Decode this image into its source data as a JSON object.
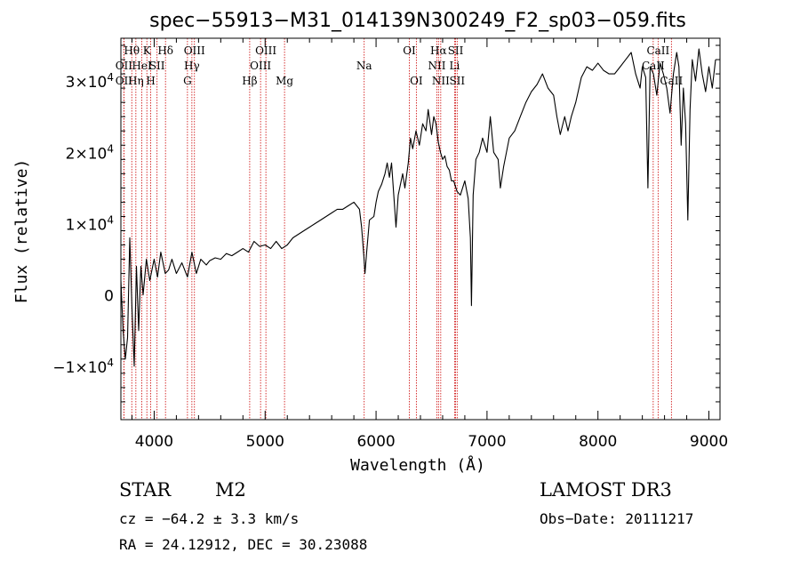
{
  "chart_data": {
    "type": "line",
    "title": "spec−55913−M31_014139N300249_F2_sp03−059.fits",
    "xlabel": "Wavelength (Å)",
    "ylabel": "Flux (relative)",
    "xlim": [
      3700,
      9100
    ],
    "ylim": [
      -17500,
      36000
    ],
    "xticks": [
      4000,
      5000,
      6000,
      7000,
      8000,
      9000
    ],
    "yticks": [
      {
        "value": -10000,
        "mantissa": "−1",
        "exp": "4"
      },
      {
        "value": 0,
        "mantissa": "0",
        "exp": ""
      },
      {
        "value": 10000,
        "mantissa": "1",
        "exp": "4"
      },
      {
        "value": 20000,
        "mantissa": "2",
        "exp": "4"
      },
      {
        "value": 30000,
        "mantissa": "3",
        "exp": "4"
      }
    ],
    "series": [
      {
        "name": "flux",
        "points": [
          [
            3700,
            2000
          ],
          [
            3720,
            -5000
          ],
          [
            3740,
            -9000
          ],
          [
            3760,
            -6000
          ],
          [
            3780,
            8000
          ],
          [
            3800,
            -2000
          ],
          [
            3820,
            -10000
          ],
          [
            3840,
            4000
          ],
          [
            3860,
            -5000
          ],
          [
            3880,
            4000
          ],
          [
            3900,
            0
          ],
          [
            3930,
            5000
          ],
          [
            3960,
            2000
          ],
          [
            4000,
            5000
          ],
          [
            4030,
            2500
          ],
          [
            4060,
            6000
          ],
          [
            4100,
            3000
          ],
          [
            4130,
            3500
          ],
          [
            4160,
            5000
          ],
          [
            4200,
            3000
          ],
          [
            4250,
            4500
          ],
          [
            4300,
            2500
          ],
          [
            4340,
            6000
          ],
          [
            4380,
            3000
          ],
          [
            4420,
            5000
          ],
          [
            4470,
            4200
          ],
          [
            4500,
            4800
          ],
          [
            4550,
            5200
          ],
          [
            4600,
            5000
          ],
          [
            4650,
            5800
          ],
          [
            4700,
            5500
          ],
          [
            4750,
            6000
          ],
          [
            4800,
            6500
          ],
          [
            4850,
            6000
          ],
          [
            4900,
            7500
          ],
          [
            4950,
            6800
          ],
          [
            5000,
            7000
          ],
          [
            5050,
            6500
          ],
          [
            5100,
            7500
          ],
          [
            5150,
            6500
          ],
          [
            5200,
            7000
          ],
          [
            5250,
            8000
          ],
          [
            5300,
            8500
          ],
          [
            5350,
            9000
          ],
          [
            5400,
            9500
          ],
          [
            5450,
            10000
          ],
          [
            5500,
            10500
          ],
          [
            5550,
            11000
          ],
          [
            5600,
            11500
          ],
          [
            5650,
            12000
          ],
          [
            5700,
            12000
          ],
          [
            5750,
            12500
          ],
          [
            5800,
            13000
          ],
          [
            5850,
            12000
          ],
          [
            5870,
            9500
          ],
          [
            5890,
            5500
          ],
          [
            5900,
            3000
          ],
          [
            5915,
            6000
          ],
          [
            5940,
            10500
          ],
          [
            5980,
            11000
          ],
          [
            6000,
            13000
          ],
          [
            6020,
            14500
          ],
          [
            6050,
            15500
          ],
          [
            6080,
            17000
          ],
          [
            6100,
            18500
          ],
          [
            6120,
            16500
          ],
          [
            6140,
            18500
          ],
          [
            6160,
            14000
          ],
          [
            6180,
            9500
          ],
          [
            6200,
            14000
          ],
          [
            6240,
            17000
          ],
          [
            6260,
            15000
          ],
          [
            6290,
            18500
          ],
          [
            6310,
            22000
          ],
          [
            6330,
            20500
          ],
          [
            6360,
            23000
          ],
          [
            6390,
            21000
          ],
          [
            6420,
            24000
          ],
          [
            6450,
            23000
          ],
          [
            6470,
            26000
          ],
          [
            6500,
            22500
          ],
          [
            6520,
            25000
          ],
          [
            6540,
            24000
          ],
          [
            6560,
            21500
          ],
          [
            6580,
            20000
          ],
          [
            6600,
            19000
          ],
          [
            6620,
            19500
          ],
          [
            6640,
            18000
          ],
          [
            6660,
            17500
          ],
          [
            6680,
            16000
          ],
          [
            6700,
            16000
          ],
          [
            6730,
            14500
          ],
          [
            6760,
            14000
          ],
          [
            6800,
            16000
          ],
          [
            6830,
            13500
          ],
          [
            6850,
            8000
          ],
          [
            6860,
            -1500
          ],
          [
            6875,
            14000
          ],
          [
            6900,
            19000
          ],
          [
            6930,
            20000
          ],
          [
            6960,
            22000
          ],
          [
            7000,
            20000
          ],
          [
            7030,
            25000
          ],
          [
            7060,
            20000
          ],
          [
            7100,
            19000
          ],
          [
            7120,
            15000
          ],
          [
            7150,
            18000
          ],
          [
            7200,
            22000
          ],
          [
            7250,
            23000
          ],
          [
            7300,
            25000
          ],
          [
            7350,
            27000
          ],
          [
            7400,
            28500
          ],
          [
            7450,
            29500
          ],
          [
            7500,
            31000
          ],
          [
            7550,
            29000
          ],
          [
            7600,
            28000
          ],
          [
            7630,
            25000
          ],
          [
            7660,
            22500
          ],
          [
            7700,
            25000
          ],
          [
            7730,
            23000
          ],
          [
            7760,
            25000
          ],
          [
            7800,
            27000
          ],
          [
            7850,
            30500
          ],
          [
            7900,
            32000
          ],
          [
            7950,
            31500
          ],
          [
            8000,
            32500
          ],
          [
            8050,
            31500
          ],
          [
            8100,
            31000
          ],
          [
            8150,
            31000
          ],
          [
            8200,
            32000
          ],
          [
            8250,
            33000
          ],
          [
            8300,
            34000
          ],
          [
            8340,
            31000
          ],
          [
            8380,
            29000
          ],
          [
            8400,
            32000
          ],
          [
            8430,
            30500
          ],
          [
            8450,
            15000
          ],
          [
            8470,
            32000
          ],
          [
            8500,
            31000
          ],
          [
            8530,
            28000
          ],
          [
            8560,
            32500
          ],
          [
            8590,
            31000
          ],
          [
            8620,
            29000
          ],
          [
            8650,
            25500
          ],
          [
            8680,
            31000
          ],
          [
            8710,
            34000
          ],
          [
            8730,
            32000
          ],
          [
            8750,
            21000
          ],
          [
            8770,
            29000
          ],
          [
            8790,
            24000
          ],
          [
            8810,
            10500
          ],
          [
            8830,
            26000
          ],
          [
            8850,
            33000
          ],
          [
            8880,
            30000
          ],
          [
            8910,
            34500
          ],
          [
            8940,
            31000
          ],
          [
            8970,
            28500
          ],
          [
            9000,
            32000
          ],
          [
            9030,
            29000
          ],
          [
            9060,
            33000
          ]
        ]
      }
    ],
    "lines": [
      {
        "wavelength": 3727,
        "label": "OII",
        "row": 2
      },
      {
        "wavelength": 3727,
        "label": "OII",
        "row": 3
      },
      {
        "wavelength": 3798,
        "label": "Hθ",
        "row": 1
      },
      {
        "wavelength": 3835,
        "label": "Hη",
        "row": 3
      },
      {
        "wavelength": 3889,
        "label": "HeI",
        "row": 2
      },
      {
        "wavelength": 3934,
        "label": "K",
        "row": 1
      },
      {
        "wavelength": 3969,
        "label": "H",
        "row": 3
      },
      {
        "wavelength": 4026,
        "label": "SII",
        "row": 2
      },
      {
        "wavelength": 4102,
        "label": "Hδ",
        "row": 1
      },
      {
        "wavelength": 4300,
        "label": "G",
        "row": 3
      },
      {
        "wavelength": 4340,
        "label": "Hγ",
        "row": 2
      },
      {
        "wavelength": 4363,
        "label": "OIII",
        "row": 1
      },
      {
        "wavelength": 4861,
        "label": "Hβ",
        "row": 3
      },
      {
        "wavelength": 4959,
        "label": "OIII",
        "row": 2
      },
      {
        "wavelength": 5007,
        "label": "OIII",
        "row": 1
      },
      {
        "wavelength": 5175,
        "label": "Mg",
        "row": 3
      },
      {
        "wavelength": 5893,
        "label": "Na",
        "row": 2
      },
      {
        "wavelength": 6300,
        "label": "OI",
        "row": 1
      },
      {
        "wavelength": 6363,
        "label": "OI",
        "row": 3
      },
      {
        "wavelength": 6548,
        "label": "NII",
        "row": 2
      },
      {
        "wavelength": 6563,
        "label": "Hα",
        "row": 1
      },
      {
        "wavelength": 6583,
        "label": "NII",
        "row": 3
      },
      {
        "wavelength": 6708,
        "label": "Li",
        "row": 2
      },
      {
        "wavelength": 6717,
        "label": "SII",
        "row": 1
      },
      {
        "wavelength": 6731,
        "label": "SII",
        "row": 3
      },
      {
        "wavelength": 8498,
        "label": "CaII",
        "row": 2
      },
      {
        "wavelength": 8542,
        "label": "CaII",
        "row": 1
      },
      {
        "wavelength": 8662,
        "label": "CaII",
        "row": 3
      }
    ],
    "colors": {
      "spectrum": "#000000",
      "lines": "#cc0000",
      "axes": "#000000"
    }
  },
  "info": {
    "class": "STAR",
    "subclass": "M2",
    "survey": "LAMOST DR3",
    "redshift": "cz = −64.2 ± 3.3 km/s",
    "obs_date": "Obs−Date: 20111217",
    "coords": "RA =  24.12912, DEC =  30.23088"
  }
}
